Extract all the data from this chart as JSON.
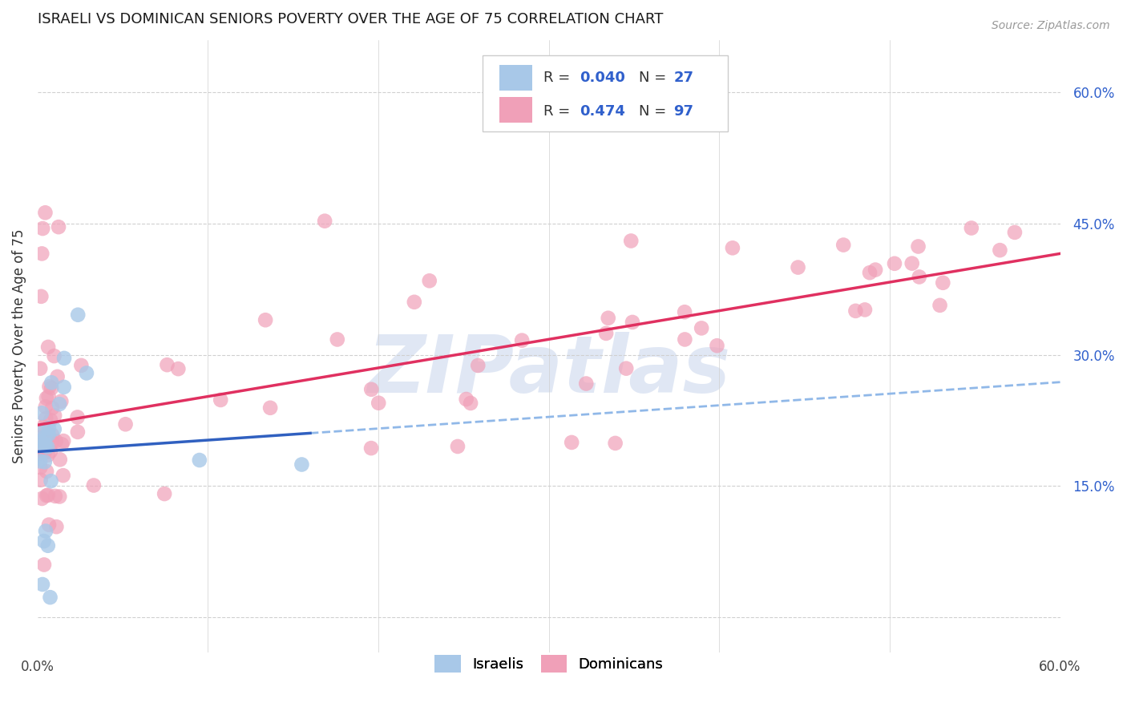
{
  "title": "ISRAELI VS DOMINICAN SENIORS POVERTY OVER THE AGE OF 75 CORRELATION CHART",
  "source": "Source: ZipAtlas.com",
  "ylabel": "Seniors Poverty Over the Age of 75",
  "xlim": [
    0.0,
    0.6
  ],
  "ylim": [
    -0.04,
    0.66
  ],
  "yticks": [
    0.0,
    0.15,
    0.3,
    0.45,
    0.6
  ],
  "ytick_labels": [
    "",
    "15.0%",
    "30.0%",
    "45.0%",
    "60.0%"
  ],
  "xtick_labels": [
    "0.0%",
    "60.0%"
  ],
  "israeli_R": 0.04,
  "israeli_N": 27,
  "dominican_R": 0.474,
  "dominican_N": 97,
  "israeli_color": "#a8c8e8",
  "dominican_color": "#f0a0b8",
  "israeli_line_color": "#3060c0",
  "dominican_line_color": "#e03060",
  "israeli_dash_color": "#90b8e8",
  "legend_color": "#3060cc",
  "background_color": "#ffffff",
  "grid_color": "#d0d0d0",
  "watermark": "ZIPatlas",
  "watermark_color": "#ccd8ee"
}
